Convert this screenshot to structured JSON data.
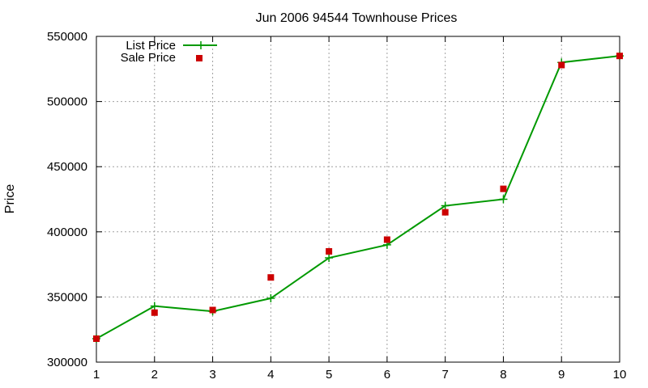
{
  "chart_data": {
    "type": "line",
    "title": "Jun 2006 94544 Townhouse Prices",
    "xlabel": "",
    "ylabel": "Price",
    "xlim": [
      1,
      10
    ],
    "ylim": [
      300000,
      550000
    ],
    "x_ticks": [
      "1",
      "2",
      "3",
      "4",
      "5",
      "6",
      "7",
      "8",
      "9",
      "10"
    ],
    "y_ticks": [
      "300000",
      "350000",
      "400000",
      "450000",
      "500000",
      "550000"
    ],
    "grid": true,
    "legend_position": "top-left",
    "x": [
      1,
      2,
      3,
      4,
      5,
      6,
      7,
      8,
      9,
      10
    ],
    "series": [
      {
        "name": "List Price",
        "style": "line-with-plus-markers",
        "color": "#009900",
        "values": [
          318000,
          343000,
          339000,
          349000,
          380000,
          390000,
          420000,
          425000,
          530000,
          535000
        ]
      },
      {
        "name": "Sale Price",
        "style": "square-markers",
        "color": "#cc0000",
        "values": [
          318000,
          338000,
          340000,
          365000,
          385000,
          394000,
          415000,
          433000,
          528000,
          535000
        ]
      }
    ]
  }
}
